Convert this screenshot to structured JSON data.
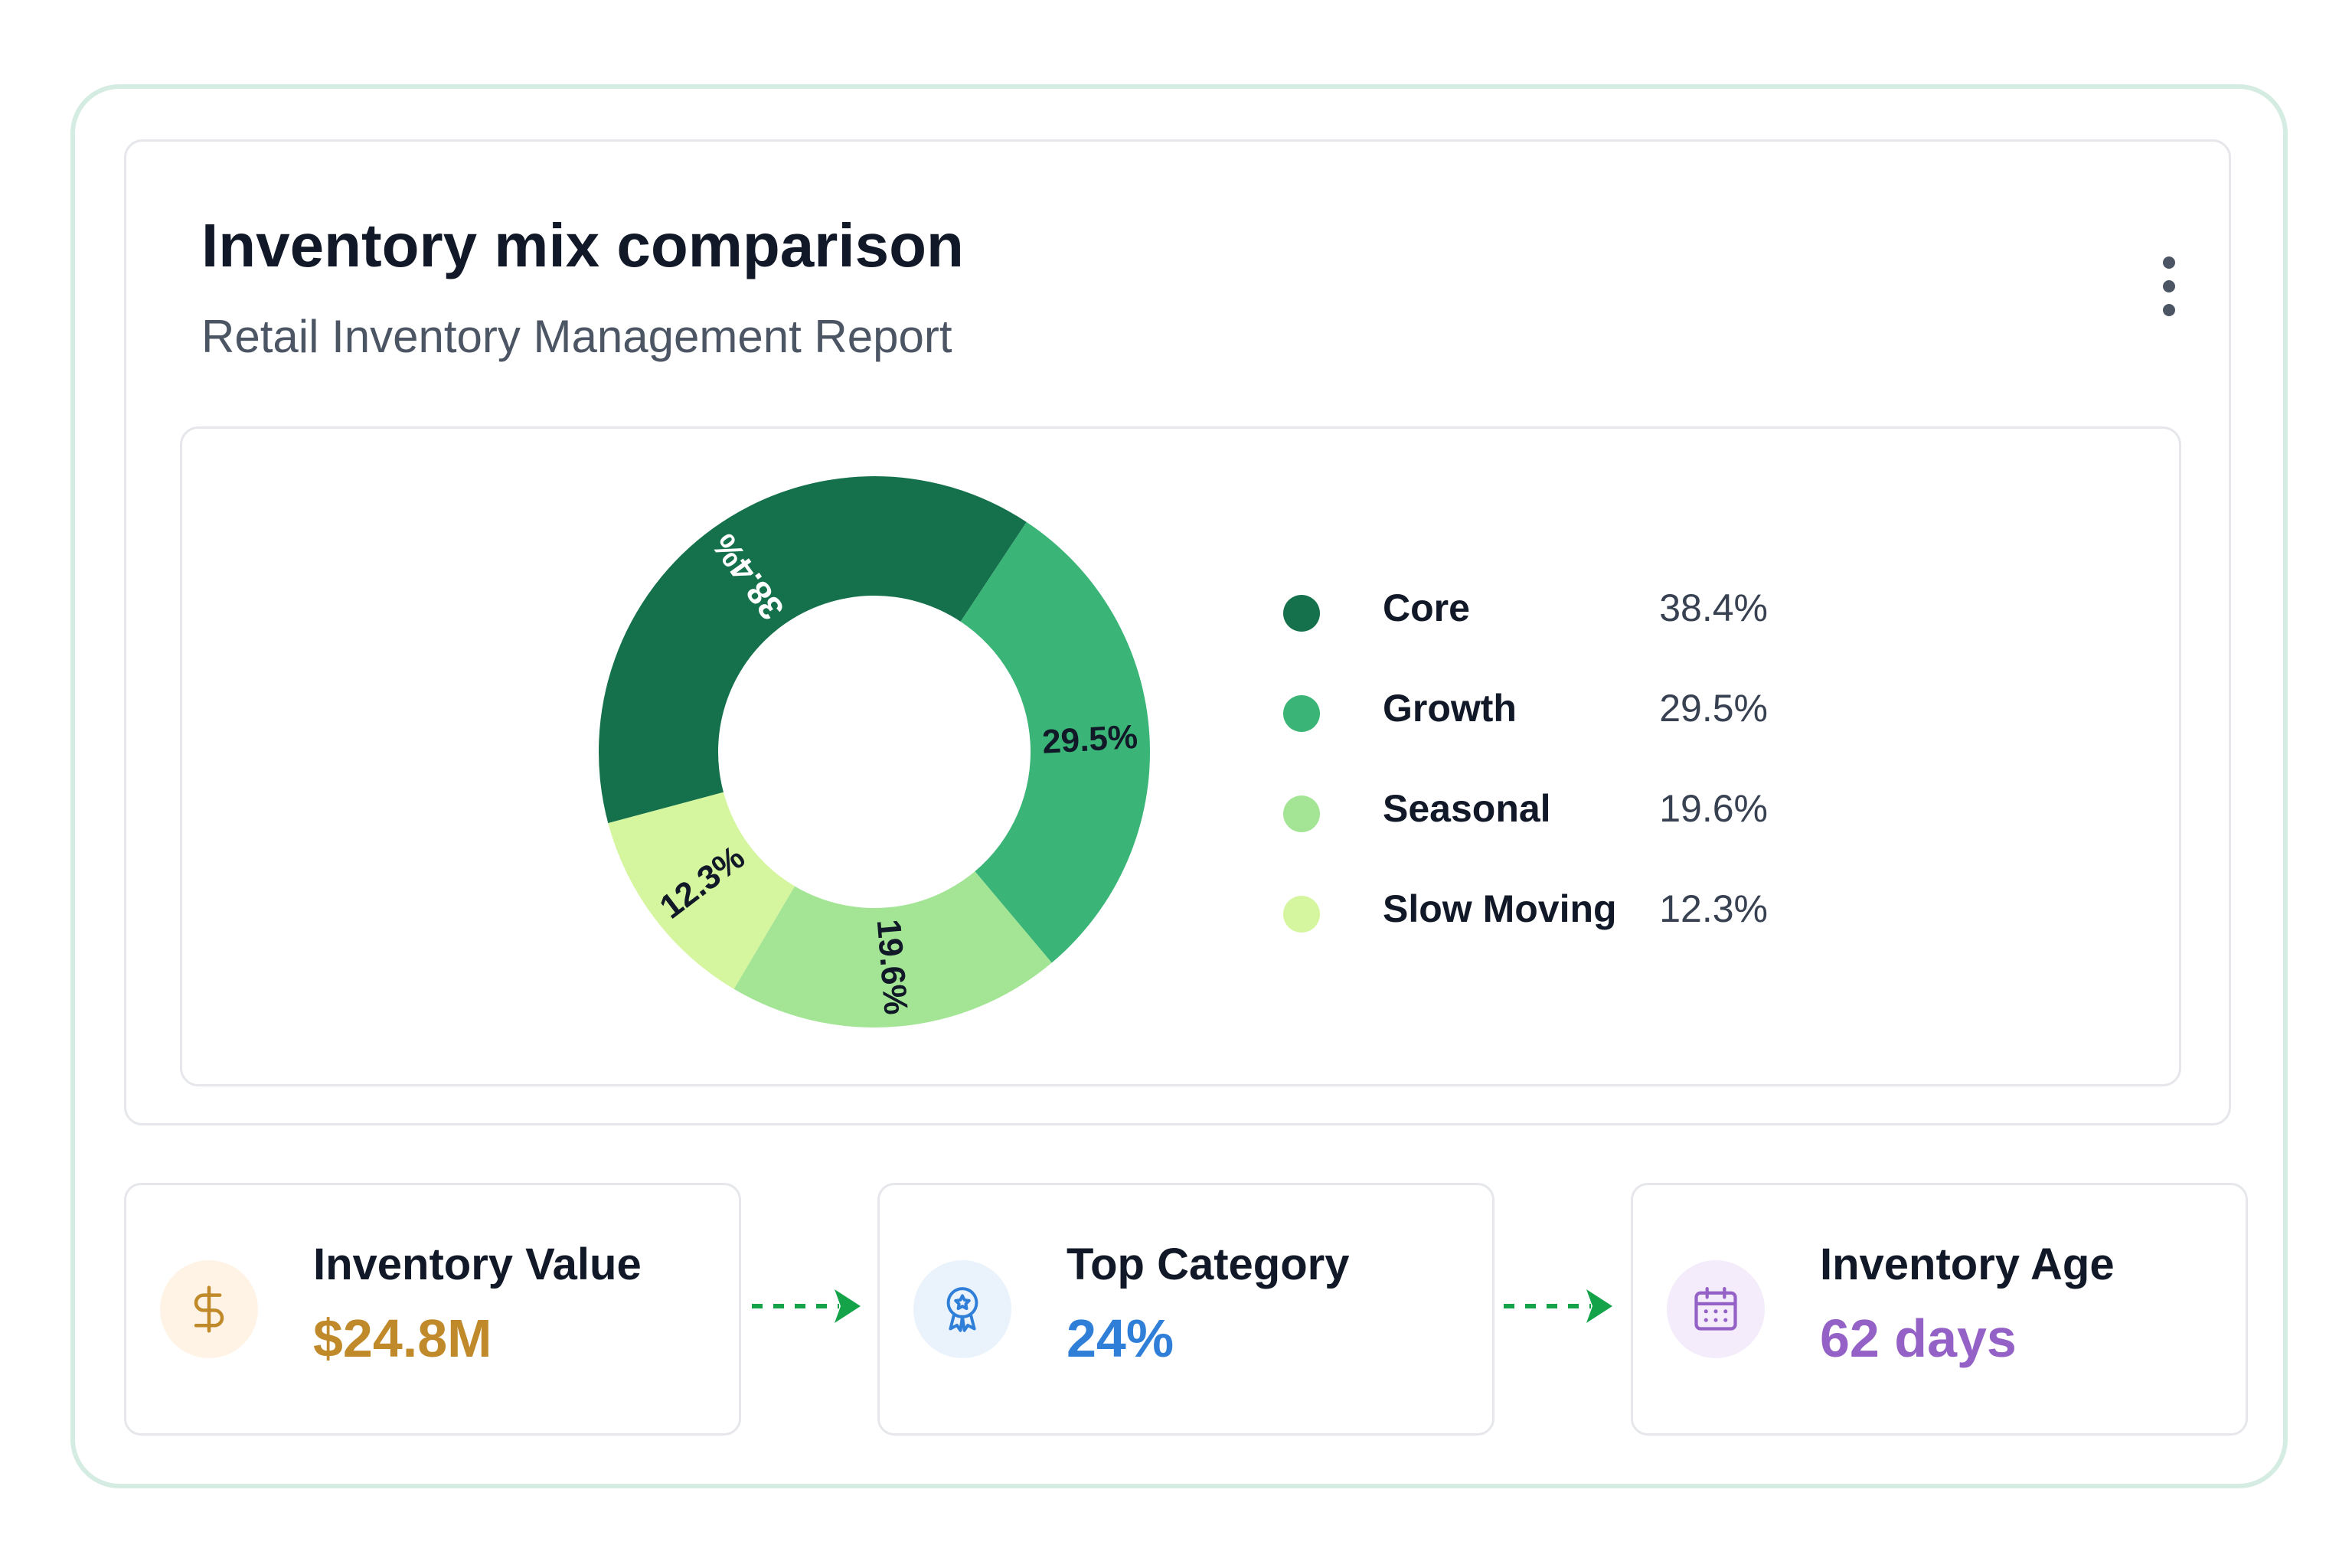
{
  "header": {
    "title": "Inventory mix comparison",
    "subtitle": "Retail Inventory Management Report",
    "menu_icon": "more-vertical-icon"
  },
  "chart_data": {
    "type": "pie",
    "variant": "donut",
    "categories": [
      "Core",
      "Growth",
      "Seasonal",
      "Slow Moving"
    ],
    "values": [
      38.4,
      29.5,
      19.6,
      12.3
    ],
    "labels": [
      "38.4%",
      "29.5%",
      "19.6%",
      "12.3%"
    ],
    "colors": [
      "#15714c",
      "#3bb577",
      "#a3e595",
      "#d5f59e"
    ],
    "label_colors": [
      "#ffffff",
      "#111827",
      "#111827",
      "#111827"
    ],
    "legend": "right"
  },
  "legend": [
    {
      "name": "Core",
      "value": "38.4%",
      "color": "#15714c"
    },
    {
      "name": "Growth",
      "value": "29.5%",
      "color": "#3bb577"
    },
    {
      "name": "Seasonal",
      "value": "19.6%",
      "color": "#a3e595"
    },
    {
      "name": "Slow Moving",
      "value": "12.3%",
      "color": "#d5f59e"
    }
  ],
  "kpis": [
    {
      "label": "Inventory Value",
      "value": "$24.8M",
      "icon": "dollar-icon",
      "color": "#c08a2b",
      "icon_bg": "#fff3e6"
    },
    {
      "label": "Top Category",
      "value": "24%",
      "icon": "award-icon",
      "color": "#2f7fd8",
      "icon_bg": "#eaf3fc"
    },
    {
      "label": "Inventory Age",
      "value": "62 days",
      "icon": "calendar-icon",
      "color": "#9461c6",
      "icon_bg": "#f4ebfb"
    }
  ],
  "flow_arrow_color": "#15a34a"
}
